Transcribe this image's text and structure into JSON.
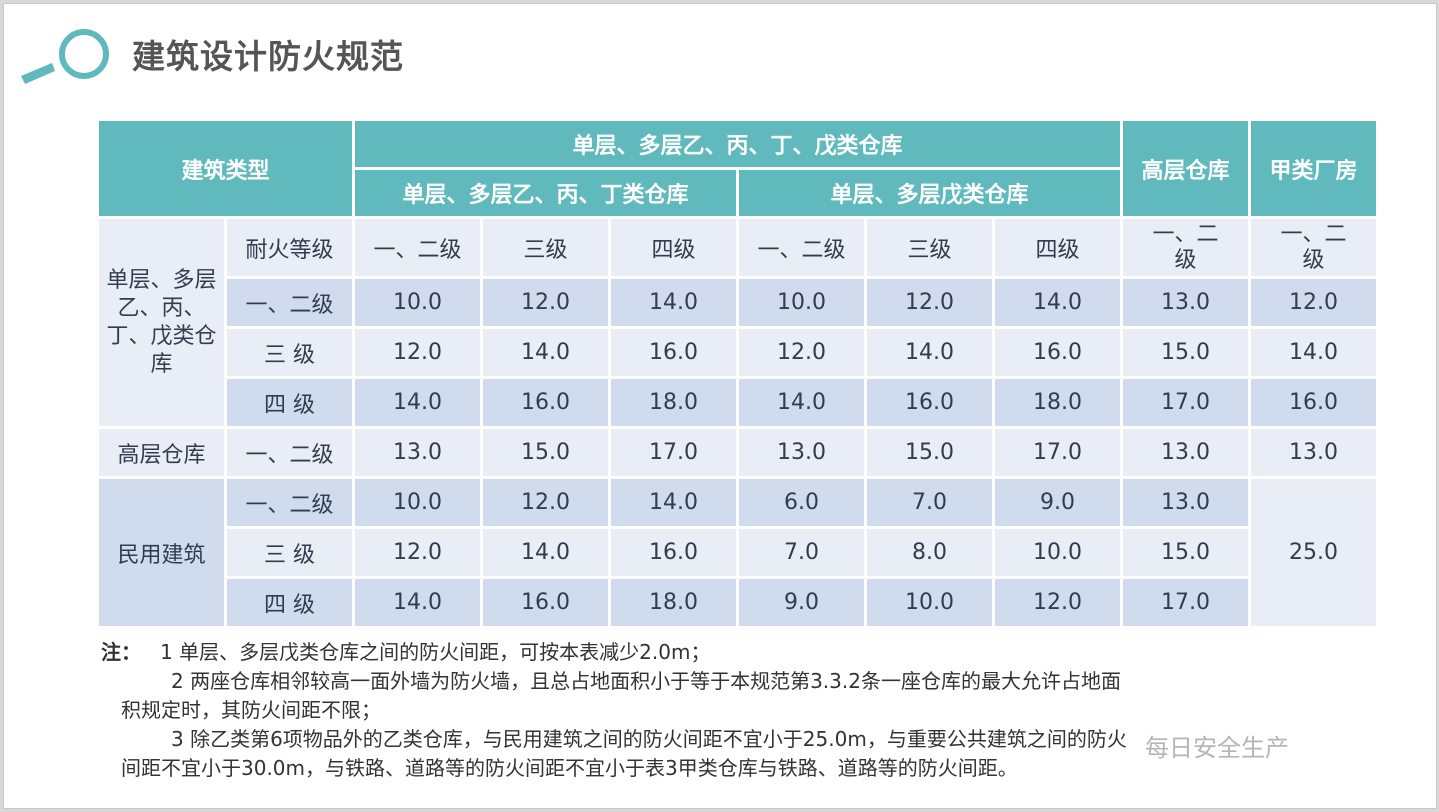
{
  "title": "建筑设计防火规范",
  "colors": {
    "header": "#5fb9bd",
    "row_light": "#e9edf6",
    "row_dark": "#d0dcee",
    "text": "#333c4e"
  },
  "header": {
    "type": "建筑类型",
    "group": "单层、多层乙、丙、丁、戊类仓库",
    "sub1": "单层、多层乙、丙、丁类仓库",
    "sub2": "单层、多层戊类仓库",
    "high": "高层仓库",
    "jia": "甲类厂房"
  },
  "grade_row": {
    "label": "耐火等级",
    "cells": [
      "一、二级",
      "三级",
      "四级",
      "一、二级",
      "三级",
      "四级",
      "一、二级",
      "一、二级"
    ]
  },
  "groups": [
    {
      "name": "单层、多层乙、丙、丁、戊类仓库",
      "rows": [
        {
          "grade": "一、二级",
          "values": [
            "10.0",
            "12.0",
            "14.0",
            "10.0",
            "12.0",
            "14.0",
            "13.0",
            "12.0"
          ]
        },
        {
          "grade": "三 级",
          "values": [
            "12.0",
            "14.0",
            "16.0",
            "12.0",
            "14.0",
            "16.0",
            "15.0",
            "14.0"
          ]
        },
        {
          "grade": "四  级",
          "values": [
            "14.0",
            "16.0",
            "18.0",
            "14.0",
            "16.0",
            "18.0",
            "17.0",
            "16.0"
          ]
        }
      ]
    },
    {
      "name": "高层仓库",
      "rows": [
        {
          "grade": "一、二级",
          "values": [
            "13.0",
            "15.0",
            "17.0",
            "13.0",
            "15.0",
            "17.0",
            "13.0",
            "13.0"
          ]
        }
      ]
    },
    {
      "name": "民用建筑",
      "rows": [
        {
          "grade": "一、二级",
          "values": [
            "10.0",
            "12.0",
            "14.0",
            "6.0",
            "7.0",
            "9.0",
            "13.0",
            "25.0"
          ]
        },
        {
          "grade": "三 级",
          "values": [
            "12.0",
            "14.0",
            "16.0",
            "7.0",
            "8.0",
            "10.0",
            "15.0"
          ]
        },
        {
          "grade": "四  级",
          "values": [
            "14.0",
            "16.0",
            "18.0",
            "9.0",
            "10.0",
            "12.0",
            "17.0"
          ]
        }
      ]
    }
  ],
  "notes": {
    "label": "注：",
    "lines": [
      "1  单层、多层戊类仓库之间的防火间距，可按本表减少2.0m；",
      "2  两座仓库相邻较高一面外墙为防火墙，且总占地面积小于等于本规范第3.3.2条一座仓库的最大允许占地面",
      "积规定时，其防火间距不限；",
      "3   除乙类第6项物品外的乙类仓库，与民用建筑之间的防火间距不宜小于25.0m，与重要公共建筑之间的防火",
      "间距不宜小于30.0m，与铁路、道路等的防火间距不宜小于表3甲类仓库与铁路、道路等的防火间距。"
    ]
  },
  "watermark": "每日安全生产"
}
